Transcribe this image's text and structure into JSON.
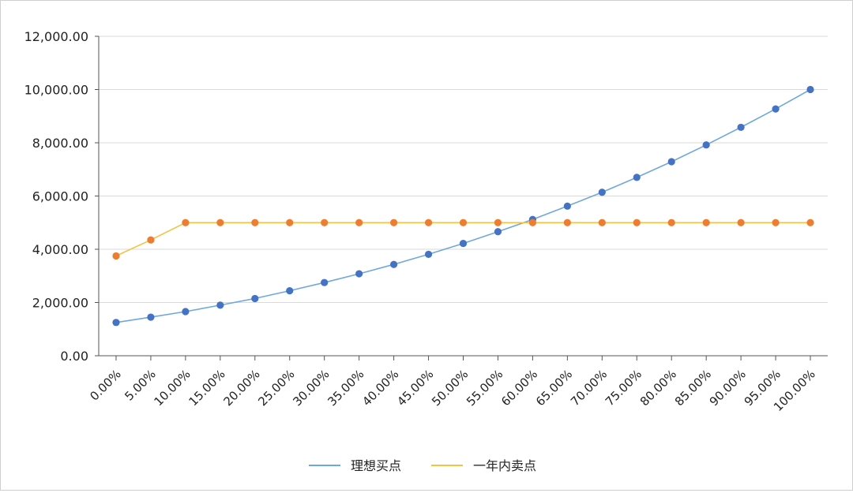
{
  "chart_data": {
    "type": "line",
    "title": "",
    "xlabel": "",
    "ylabel": "",
    "categories": [
      "0.00%",
      "5.00%",
      "10.00%",
      "15.00%",
      "20.00%",
      "25.00%",
      "30.00%",
      "35.00%",
      "40.00%",
      "45.00%",
      "50.00%",
      "55.00%",
      "60.00%",
      "65.00%",
      "70.00%",
      "75.00%",
      "80.00%",
      "85.00%",
      "90.00%",
      "95.00%",
      "100.00%"
    ],
    "ylim": [
      0,
      12000
    ],
    "yticks": [
      0,
      2000,
      4000,
      6000,
      8000,
      10000,
      12000
    ],
    "ytick_labels": [
      "0.00",
      "2,000.00",
      "4,000.00",
      "6,000.00",
      "8,000.00",
      "10,000.00",
      "12,000.00"
    ],
    "grid": true,
    "legend_position": "bottom",
    "series": [
      {
        "name": "理想买点",
        "line_color": "#6fa8dc",
        "marker_color": "#4472c4",
        "values": [
          1250,
          1450,
          1660,
          1900,
          2150,
          2440,
          2750,
          3080,
          3430,
          3810,
          4220,
          4660,
          5120,
          5620,
          6140,
          6700,
          7290,
          7920,
          8580,
          9270,
          10000
        ]
      },
      {
        "name": "一年内卖点",
        "line_color": "#f5c242",
        "marker_color": "#ed7d31",
        "values": [
          3750,
          4350,
          5000,
          5000,
          5000,
          5000,
          5000,
          5000,
          5000,
          5000,
          5000,
          5000,
          5000,
          5000,
          5000,
          5000,
          5000,
          5000,
          5000,
          5000,
          5000
        ]
      }
    ]
  }
}
